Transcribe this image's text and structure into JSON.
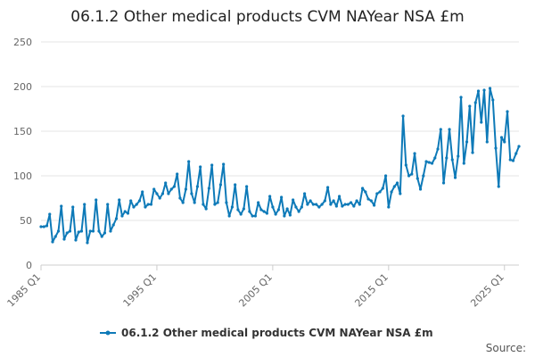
{
  "chart_data": {
    "type": "line",
    "title": "06.1.2 Other medical products CVM NAYear NSA £m",
    "xlabel": "",
    "ylabel": "",
    "ylim": [
      0,
      250
    ],
    "y_ticks": [
      0,
      50,
      100,
      150,
      200,
      250
    ],
    "x_tick_labels": [
      "1985 Q1",
      "1995 Q1",
      "2005 Q1",
      "2015 Q1",
      "2025 Q1"
    ],
    "x_tick_indices": [
      0,
      40,
      80,
      120,
      160
    ],
    "grid": true,
    "legend_position": "bottom",
    "color": "#0e7ab8",
    "source_label": "Source:",
    "series": [
      {
        "name": "06.1.2 Other medical products CVM NAYear NSA £m",
        "values": [
          43,
          43,
          44,
          57,
          26,
          32,
          38,
          66,
          29,
          36,
          38,
          65,
          28,
          37,
          38,
          68,
          25,
          38,
          38,
          73,
          38,
          32,
          36,
          68,
          38,
          45,
          52,
          73,
          55,
          60,
          58,
          72,
          65,
          68,
          72,
          82,
          65,
          68,
          68,
          85,
          80,
          75,
          80,
          92,
          80,
          85,
          88,
          102,
          75,
          70,
          85,
          116,
          80,
          70,
          88,
          110,
          68,
          63,
          86,
          112,
          68,
          70,
          90,
          113,
          70,
          55,
          65,
          90,
          62,
          57,
          63,
          88,
          60,
          55,
          55,
          70,
          62,
          60,
          58,
          77,
          65,
          57,
          62,
          76,
          55,
          63,
          56,
          73,
          65,
          60,
          65,
          80,
          68,
          72,
          68,
          68,
          65,
          68,
          72,
          87,
          68,
          72,
          66,
          77,
          66,
          68,
          68,
          70,
          66,
          72,
          68,
          86,
          82,
          74,
          72,
          67,
          80,
          82,
          86,
          100,
          65,
          82,
          88,
          92,
          80,
          167,
          112,
          100,
          102,
          125,
          97,
          85,
          100,
          116,
          115,
          114,
          120,
          130,
          152,
          92,
          120,
          152,
          118,
          98,
          122,
          188,
          114,
          138,
          178,
          126,
          182,
          195,
          160,
          196,
          138,
          198,
          185,
          131,
          88,
          143,
          138,
          172,
          118,
          117,
          125,
          133
        ]
      }
    ]
  }
}
